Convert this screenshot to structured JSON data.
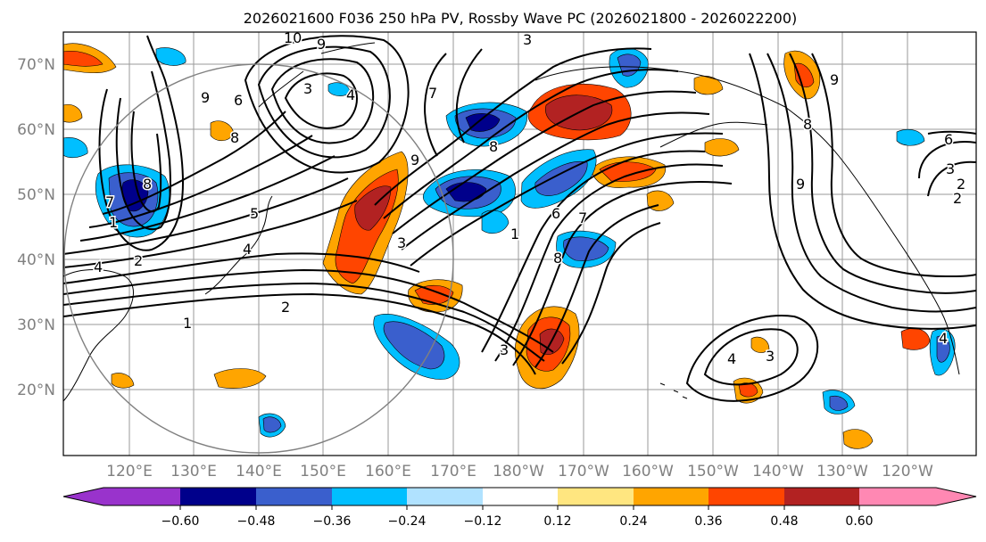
{
  "title": "2026021600 F036 250 hPa PV, Rossby Wave PC (2026021800 - 2026022200)",
  "map": {
    "lat_labels": [
      "70°N",
      "60°N",
      "50°N",
      "40°N",
      "30°N",
      "20°N"
    ],
    "lon_labels": [
      "120°E",
      "130°E",
      "140°E",
      "150°E",
      "160°E",
      "170°E",
      "180°W",
      "170°W",
      "160°W",
      "150°W",
      "140°W",
      "130°W",
      "120°W"
    ],
    "contour_labels": [
      "10",
      "9",
      "3",
      "9",
      "8",
      "7",
      "8",
      "6",
      "5",
      "4",
      "3",
      "2",
      "1",
      "9",
      "8",
      "7",
      "6",
      "4",
      "3",
      "4",
      "2",
      "1",
      "9",
      "8",
      "7",
      "3",
      "4",
      "6",
      "9",
      "8",
      "3",
      "2",
      "1",
      "4",
      "3",
      "2"
    ]
  },
  "colorbar": {
    "tick_labels": [
      "−0.60",
      "−0.48",
      "−0.36",
      "−0.24",
      "−0.12",
      "0.12",
      "0.24",
      "0.36",
      "0.48",
      "0.60"
    ],
    "colors": [
      "#9933cc",
      "#00008b",
      "#3a5fcd",
      "#00bfff",
      "#b0e2ff",
      "#ffffff",
      "#ffe680",
      "#ffa500",
      "#ff4500",
      "#b22222",
      "#ff88b3"
    ]
  },
  "colors": {
    "neg_strong": "#00008b",
    "neg_mid": "#3a5fcd",
    "neg_weak": "#00bfff",
    "neg_faint": "#b0e2ff",
    "pos_faint": "#ffe680",
    "pos_weak": "#ffa500",
    "pos_mid": "#ff4500",
    "pos_strong": "#b22222",
    "axis_label": "#808080"
  }
}
